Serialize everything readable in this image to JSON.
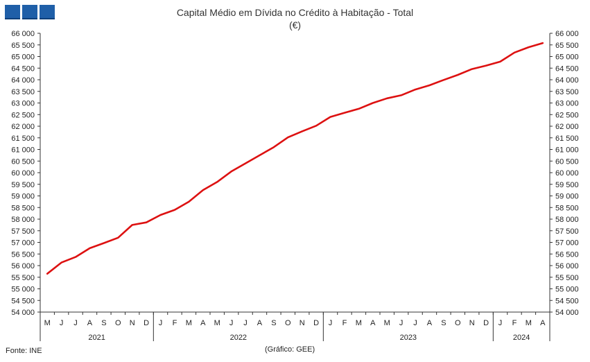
{
  "header": {
    "title": "Capital Médio em Dívida no Crédito à Habitação - Total",
    "subtitle": "(€)"
  },
  "footer": {
    "source": "Fonte: INE",
    "credit": "(Gráfico: GEE)"
  },
  "colors": {
    "line": "#dd1111",
    "logo": "#1f5fa8",
    "axis": "#333333"
  },
  "chart_data": {
    "type": "line",
    "title": "Capital Médio em Dívida no Crédito à Habitação - Total",
    "subtitle": "(€)",
    "xlabel": "",
    "ylabel": "",
    "ylim": [
      54000,
      66000
    ],
    "y_ticks": [
      "54 000",
      "54 500",
      "55 000",
      "55 500",
      "56 000",
      "56 500",
      "57 000",
      "57 500",
      "58 000",
      "58 500",
      "59 000",
      "59 500",
      "60 000",
      "60 500",
      "61 000",
      "61 500",
      "62 000",
      "62 500",
      "63 000",
      "63 500",
      "64 000",
      "64 500",
      "65 000",
      "65 500",
      "66 000"
    ],
    "month_labels": [
      "M",
      "J",
      "J",
      "A",
      "S",
      "O",
      "N",
      "D",
      "J",
      "F",
      "M",
      "A",
      "M",
      "J",
      "J",
      "A",
      "S",
      "O",
      "N",
      "D",
      "J",
      "F",
      "M",
      "A",
      "M",
      "J",
      "J",
      "A",
      "S",
      "O",
      "N",
      "D",
      "J",
      "F",
      "M",
      "A"
    ],
    "year_groups": [
      {
        "label": "2021",
        "start": 0,
        "count": 8
      },
      {
        "label": "2022",
        "start": 8,
        "count": 12
      },
      {
        "label": "2023",
        "start": 20,
        "count": 12
      },
      {
        "label": "2024",
        "start": 32,
        "count": 4
      }
    ],
    "grid": false,
    "series": [
      {
        "values": [
          55650,
          56130,
          56370,
          56750,
          56970,
          57200,
          57750,
          57860,
          58180,
          58400,
          58750,
          59250,
          59600,
          60050,
          60400,
          60750,
          61100,
          61520,
          61780,
          62020,
          62400,
          62580,
          62750,
          63000,
          63200,
          63330,
          63580,
          63760,
          63990,
          64210,
          64460,
          64610,
          64780,
          65170,
          65400,
          65580
        ]
      }
    ]
  }
}
